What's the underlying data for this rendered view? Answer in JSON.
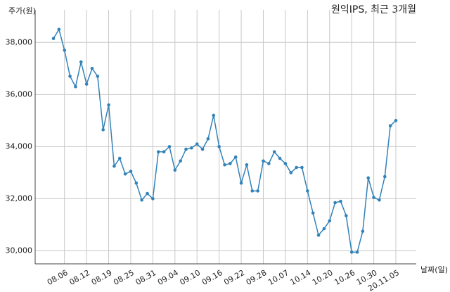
{
  "chart_data": {
    "type": "line",
    "title": "원익IPS, 최근 3개월",
    "y_label": "주가(원)",
    "x_label": "날짜(일)",
    "categories": [
      null,
      null,
      "08.06",
      null,
      null,
      null,
      "08.12",
      null,
      null,
      null,
      "08.19",
      null,
      null,
      null,
      "08.25",
      null,
      null,
      null,
      "08.31",
      null,
      null,
      null,
      "09.04",
      null,
      null,
      null,
      "09.10",
      null,
      null,
      null,
      "09.16",
      null,
      null,
      null,
      "09.22",
      null,
      null,
      null,
      "09.28",
      null,
      null,
      null,
      "10.07",
      null,
      null,
      null,
      "10.14",
      null,
      null,
      null,
      "10.20",
      null,
      null,
      null,
      "10.26",
      null,
      null,
      null,
      "10.30",
      null,
      null,
      null,
      "20.11.05"
    ],
    "series": [
      {
        "name": "원익IPS",
        "color": "#3282b8",
        "values": [
          38150,
          38500,
          37700,
          36700,
          36300,
          37250,
          36400,
          37000,
          36700,
          34650,
          35600,
          33250,
          33550,
          32950,
          33050,
          32600,
          31950,
          32200,
          32000,
          33800,
          33800,
          34000,
          33100,
          33450,
          33900,
          33950,
          34100,
          33900,
          34300,
          35200,
          34000,
          33300,
          33350,
          33600,
          32600,
          33300,
          32300,
          32300,
          33450,
          33350,
          33800,
          33550,
          33350,
          33000,
          33200,
          33200,
          32300,
          31450,
          30600,
          30850,
          31150,
          31850,
          31900,
          31350,
          29950,
          29950,
          30750,
          32800,
          32050,
          31950,
          32850,
          34800,
          35000
        ]
      }
    ],
    "ylim": [
      29500,
      39250
    ],
    "yticks": [
      {
        "value": 30000,
        "label": "30,000"
      },
      {
        "value": 32000,
        "label": "32,000"
      },
      {
        "value": 34000,
        "label": "34,000"
      },
      {
        "value": 36000,
        "label": "36,000"
      },
      {
        "value": 38000,
        "label": "38,000"
      }
    ],
    "grid": true
  }
}
